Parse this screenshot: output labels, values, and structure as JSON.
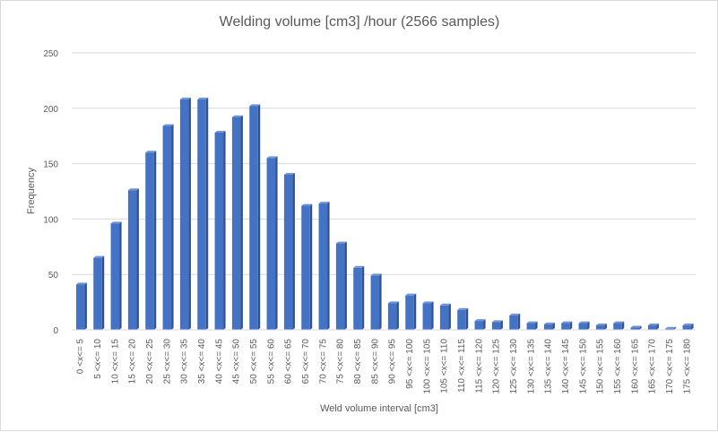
{
  "chart_data": {
    "type": "bar",
    "title": "Welding volume [cm3] /hour  (2566 samples)",
    "xlabel": "Weld volume interval [cm3]",
    "ylabel": "Frequency",
    "ylim": [
      0,
      250
    ],
    "yticks": [
      "0",
      "50",
      "100",
      "150",
      "200",
      "250"
    ],
    "grid": true,
    "legend": "none",
    "bar_color": "#4472c4",
    "categories": [
      "0 <x<= 5",
      "5 <x<= 10",
      "10 <x<= 15",
      "15 <x<= 20",
      "20 <x<= 25",
      "25 <x<= 30",
      "30 <x<= 35",
      "35 <x<= 40",
      "40 <x<= 45",
      "45 <x<= 50",
      "50 <x<= 55",
      "55 <x<= 60",
      "60 <x<= 65",
      "65 <x<= 70",
      "70 <x<= 75",
      "75 <x<= 80",
      "80 <x<= 85",
      "85 <x<= 90",
      "90 <x<= 95",
      "95 <x<= 100",
      "100 <x<= 105",
      "105 <x<= 110",
      "110 <x<= 115",
      "115 <x<= 120",
      "120 <x<= 125",
      "125 <x<= 130",
      "130 <x<= 135",
      "135 <x<= 140",
      "140 <x<= 145",
      "145 <x<= 150",
      "150 <x<= 155",
      "155 <x<= 160",
      "160 <x<= 165",
      "165 <x<= 170",
      "170 <x<= 175",
      "175 <x<= 180"
    ],
    "values": [
      41,
      65,
      96,
      126,
      160,
      184,
      208,
      208,
      178,
      192,
      202,
      155,
      140,
      112,
      114,
      78,
      56,
      49,
      24,
      31,
      24,
      22,
      18,
      8,
      7,
      13,
      6,
      5,
      6,
      6,
      4,
      6,
      2,
      4,
      1,
      4
    ]
  }
}
